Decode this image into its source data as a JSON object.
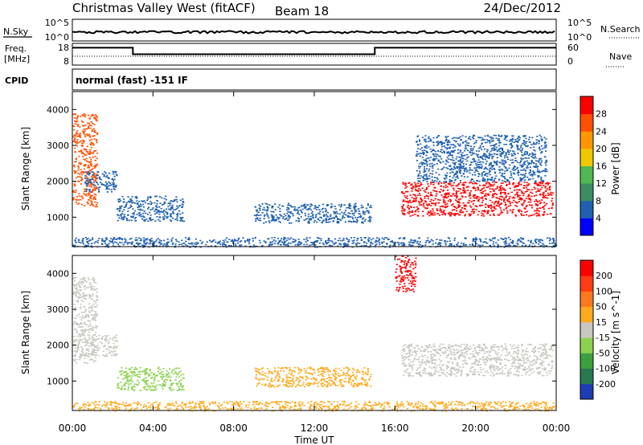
{
  "header": {
    "station": "Christmas Valley West (fitACF)",
    "beam": "Beam 18",
    "date": "24/Dec/2012"
  },
  "status_panels": {
    "nsky": {
      "label": "N.Sky",
      "tick_top": "10^5",
      "tick_bottom": "10^0"
    },
    "nsearch": {
      "label": "N.Search",
      "tick_top": "10^5",
      "tick_bottom": "10^0"
    },
    "freq": {
      "label_line1": "Freq.",
      "label_line2": "[MHz]",
      "tick_top": "18",
      "tick_bottom": "8"
    },
    "nave": {
      "label": "Nave",
      "tick_top": "60",
      "tick_bottom": "0"
    },
    "cpid": {
      "label": "CPID",
      "value": "normal (fast) -151 IF"
    }
  },
  "chart_data": [
    {
      "type": "heatmap",
      "quantity": "Power",
      "ylabel": "Slant Range [km]",
      "ylim": [
        180,
        4500
      ],
      "yticks": [
        "1000",
        "2000",
        "3000",
        "4000"
      ],
      "xlim": [
        0,
        24
      ],
      "xticks": [
        "00:00",
        "04:00",
        "08:00",
        "12:00",
        "16:00",
        "20:00",
        "00:00"
      ],
      "colorbar": {
        "label": "Power [dB]",
        "ticks": [
          "4",
          "8",
          "12",
          "16",
          "20",
          "24",
          "28"
        ],
        "colors": [
          "#0000ff",
          "#2060b0",
          "#3c8c64",
          "#50b850",
          "#f0c800",
          "#ff9600",
          "#ff5000",
          "#ff0000"
        ]
      },
      "regions": [
        {
          "t0": 0.0,
          "t1": 1.2,
          "r0": 1300,
          "r1": 3900,
          "color": "#ff5000"
        },
        {
          "t0": 0.6,
          "t1": 2.2,
          "r0": 1700,
          "r1": 2300,
          "color": "#2060b0"
        },
        {
          "t0": 2.2,
          "t1": 5.5,
          "r0": 900,
          "r1": 1600,
          "color": "#2060b0"
        },
        {
          "t0": 9.0,
          "t1": 14.8,
          "r0": 850,
          "r1": 1400,
          "color": "#2060b0"
        },
        {
          "t0": 16.3,
          "t1": 23.8,
          "r0": 1050,
          "r1": 2000,
          "color": "#ff0000"
        },
        {
          "t0": 17.0,
          "t1": 23.5,
          "r0": 2000,
          "r1": 3300,
          "color": "#2060b0"
        },
        {
          "t0": 0.0,
          "t1": 24.0,
          "r0": 180,
          "r1": 450,
          "color": "#2060b0"
        }
      ]
    },
    {
      "type": "heatmap",
      "quantity": "Velocity",
      "ylabel": "Slant Range [km]",
      "ylim": [
        180,
        4500
      ],
      "yticks": [
        "1000",
        "2000",
        "3000",
        "4000"
      ],
      "xlim": [
        0,
        24
      ],
      "xticks": [
        "00:00",
        "04:00",
        "08:00",
        "12:00",
        "16:00",
        "20:00",
        "00:00"
      ],
      "xlabel": "Time UT",
      "colorbar": {
        "label": "Velocity [m s^-1]",
        "ticks": [
          "200",
          "100",
          "50",
          "15",
          "-15",
          "-50",
          "-100",
          "-200"
        ],
        "colors": [
          "#1e3cb4",
          "#287850",
          "#3ca03c",
          "#8cd250",
          "#c8c8c0",
          "#ffaa1e",
          "#ff781e",
          "#ff3c14",
          "#ff0000"
        ]
      },
      "regions": [
        {
          "t0": 0.0,
          "t1": 1.2,
          "r0": 1500,
          "r1": 3900,
          "color": "#c8c8c0"
        },
        {
          "t0": 0.6,
          "t1": 2.2,
          "r0": 1700,
          "r1": 2300,
          "color": "#c8c8c0"
        },
        {
          "t0": 2.2,
          "t1": 5.5,
          "r0": 750,
          "r1": 1400,
          "color": "#8cd250"
        },
        {
          "t0": 9.0,
          "t1": 14.8,
          "r0": 850,
          "r1": 1400,
          "color": "#ffaa1e"
        },
        {
          "t0": 16.3,
          "t1": 23.8,
          "r0": 1150,
          "r1": 2050,
          "color": "#c8c8c0"
        },
        {
          "t0": 16.0,
          "t1": 17.0,
          "r0": 3500,
          "r1": 4500,
          "color": "#ff0000"
        },
        {
          "t0": 0.0,
          "t1": 24.0,
          "r0": 180,
          "r1": 450,
          "color": "#ffaa1e"
        }
      ]
    }
  ],
  "freq_series": {
    "t": [
      0,
      3,
      3,
      15,
      15,
      24
    ],
    "mhz": [
      16,
      16,
      13,
      13,
      16,
      16
    ]
  }
}
